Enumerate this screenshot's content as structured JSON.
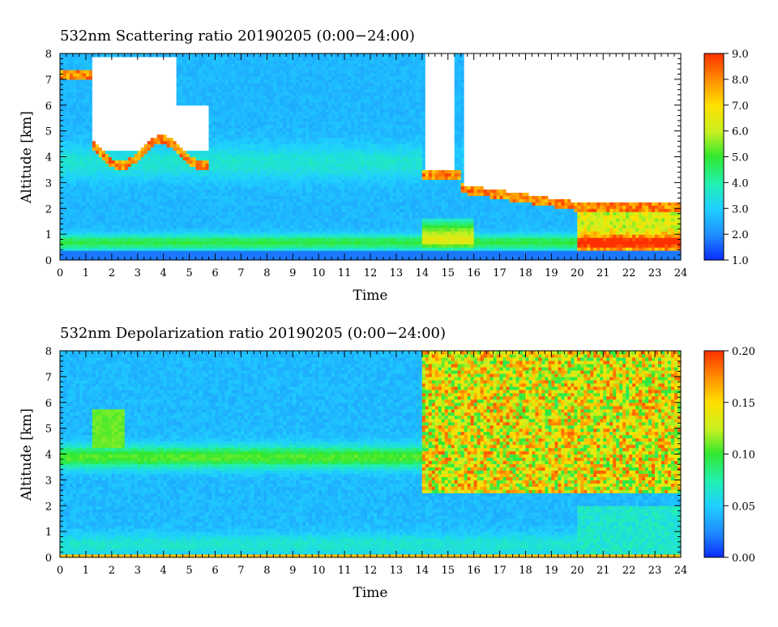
{
  "chart_data": [
    {
      "type": "heatmap",
      "title": "532nm Scattering ratio  20190205 (0:00−24:00)",
      "xlabel": "Time",
      "ylabel": "Altitude [km]",
      "xlim": [
        0,
        24
      ],
      "ylim": [
        0,
        8
      ],
      "x_ticks": [
        "0",
        "1",
        "2",
        "3",
        "4",
        "5",
        "6",
        "7",
        "8",
        "9",
        "10",
        "11",
        "12",
        "13",
        "14",
        "15",
        "16",
        "17",
        "18",
        "19",
        "20",
        "21",
        "22",
        "23",
        "24"
      ],
      "y_ticks": [
        "0",
        "1",
        "2",
        "3",
        "4",
        "5",
        "6",
        "7",
        "8"
      ],
      "colorbar": {
        "range": [
          1.0,
          9.0
        ],
        "ticks": [
          "1.0",
          "2.0",
          "3.0",
          "4.0",
          "5.0",
          "6.0",
          "7.0",
          "8.0",
          "9.0"
        ],
        "colors": [
          "#0a2cff",
          "#1f8cff",
          "#1fd0ff",
          "#22f0b0",
          "#30e830",
          "#c8f020",
          "#ffe000",
          "#ff9000",
          "#ff3000"
        ]
      },
      "white_regions": "cloud / saturated areas shown white",
      "features": [
        {
          "name": "low boundary layer",
          "altitude_km": [
            0.3,
            1.0
          ],
          "time_h": [
            0,
            24
          ],
          "value": 5.0
        },
        {
          "name": "aerosol layer",
          "altitude_km": [
            3.0,
            4.5
          ],
          "time_h": [
            0,
            14
          ],
          "value": 3.5
        },
        {
          "name": "cloud base",
          "altitude_km": [
            3.8,
            4.5
          ],
          "time_h": [
            1.2,
            5.8
          ],
          "value": 9.0
        },
        {
          "name": "descending cloud",
          "altitude_km": [
            0.5,
            3.5
          ],
          "time_h": [
            14,
            24
          ],
          "value": 8.0
        }
      ]
    },
    {
      "type": "heatmap",
      "title": "532nm Depolarization ratio  20190205 (0:00−24:00)",
      "xlabel": "Time",
      "ylabel": "Altitude [km]",
      "xlim": [
        0,
        24
      ],
      "ylim": [
        0,
        8
      ],
      "x_ticks": [
        "0",
        "1",
        "2",
        "3",
        "4",
        "5",
        "6",
        "7",
        "8",
        "9",
        "10",
        "11",
        "12",
        "13",
        "14",
        "15",
        "16",
        "17",
        "18",
        "19",
        "20",
        "21",
        "22",
        "23",
        "24"
      ],
      "y_ticks": [
        "0",
        "1",
        "2",
        "3",
        "4",
        "5",
        "6",
        "7",
        "8"
      ],
      "colorbar": {
        "range": [
          0.0,
          0.2
        ],
        "ticks": [
          "0.00",
          "0.05",
          "0.10",
          "0.15",
          "0.20"
        ],
        "colors": [
          "#0a2cff",
          "#1f8cff",
          "#1fd0ff",
          "#22f0b0",
          "#30e830",
          "#c8f020",
          "#ffe000",
          "#ff9000",
          "#ff3000"
        ]
      },
      "features": [
        {
          "name": "near-surface layer",
          "altitude_km": [
            0.0,
            1.0
          ],
          "time_h": [
            0,
            20
          ],
          "value": 0.05
        },
        {
          "name": "aerosol layer",
          "altitude_km": [
            3.5,
            4.3
          ],
          "time_h": [
            0,
            14
          ],
          "value": 0.09
        },
        {
          "name": "ice cloud",
          "altitude_km": [
            3.0,
            8.0
          ],
          "time_h": [
            14,
            24
          ],
          "value": 0.19
        }
      ]
    }
  ]
}
